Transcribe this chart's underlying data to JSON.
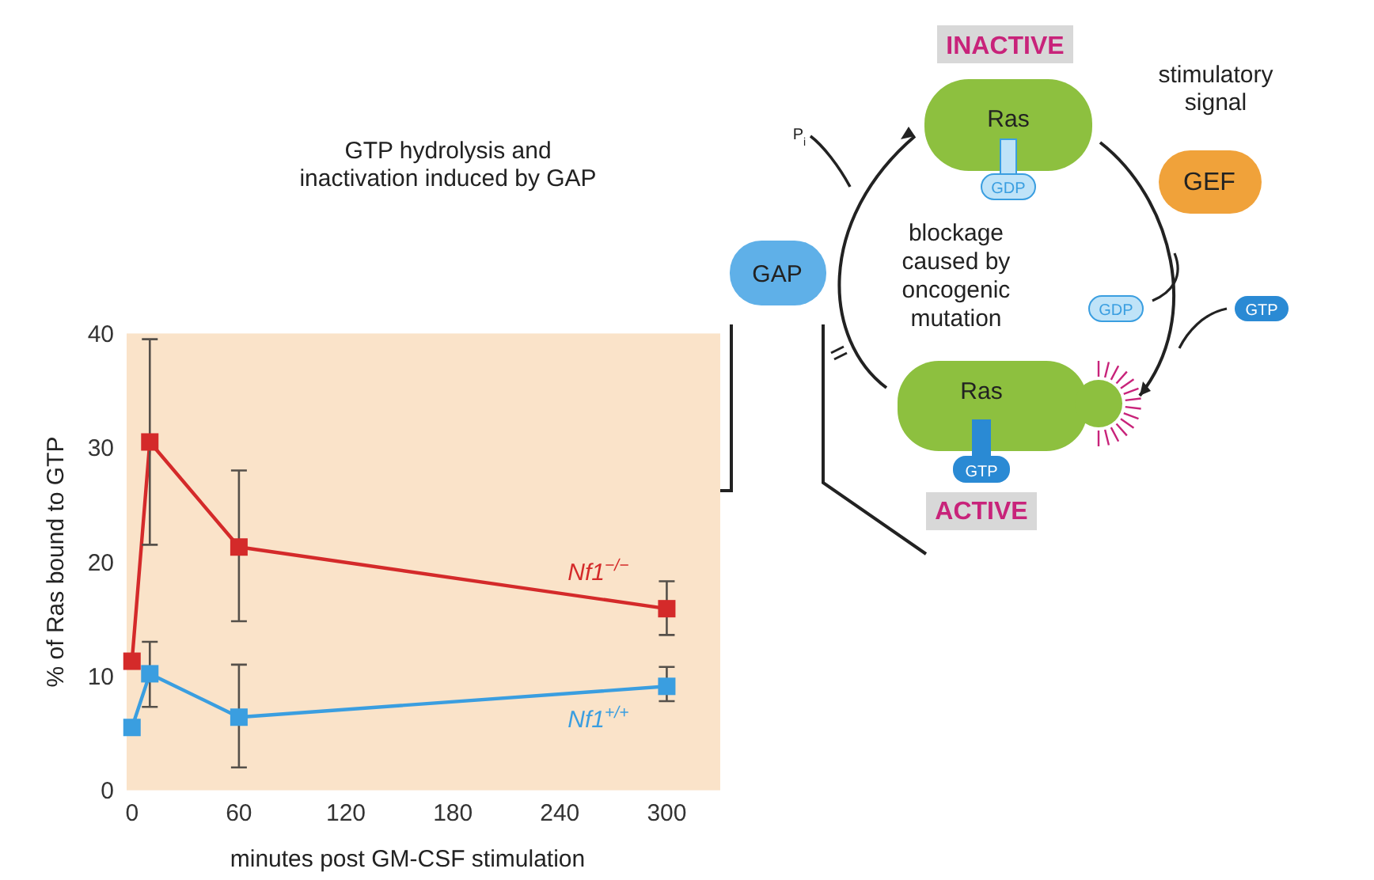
{
  "chart_data": {
    "type": "line",
    "xlabel": "minutes post GM-CSF stimulation",
    "ylabel": "% of Ras bound to GTP",
    "xlim": [
      -3,
      330
    ],
    "ylim": [
      0,
      40
    ],
    "xticks": [
      0,
      60,
      120,
      180,
      240,
      300
    ],
    "yticks": [
      0,
      10,
      20,
      30,
      40
    ],
    "x": [
      0,
      10,
      60,
      300
    ],
    "marker": "square",
    "line_style": "solid",
    "grid": false,
    "series": [
      {
        "name": "Nf1$^{−/−}$",
        "color": "#d42a2a",
        "values": [
          11.3,
          30.5,
          21.3,
          15.9
        ],
        "errors": [
          null,
          [
            21.5,
            39.5
          ],
          [
            14.8,
            28
          ],
          [
            13.6,
            18.3
          ]
        ]
      },
      {
        "name": "Nf1$^{+/+}$",
        "color": "#3a9ee0",
        "values": [
          5.5,
          10.2,
          6.4,
          9.1
        ],
        "errors": [
          null,
          [
            7.3,
            13
          ],
          [
            2,
            11
          ],
          [
            7.8,
            10.8
          ]
        ]
      }
    ],
    "annotations": [
      "INACTIVE",
      "Ras",
      "GDP",
      "stimulatory\nsignal",
      "GEF",
      "GTP hydrolysis and\ninactivation induced by GAP",
      "GAP",
      "P$_{i}$",
      "blockage\ncaused by\noncogenic\nmutation",
      "GDP",
      "GTP",
      "Ras",
      "GTP",
      "ACTIVE"
    ]
  }
}
